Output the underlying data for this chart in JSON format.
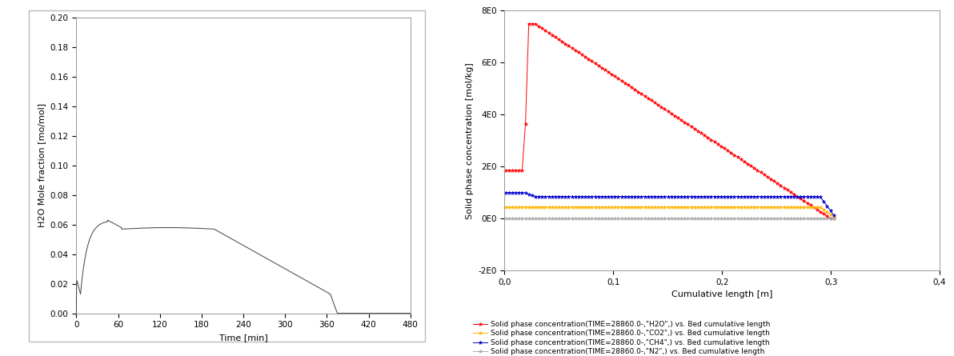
{
  "left_plot": {
    "xlabel": "Time [min]",
    "ylabel": "H2O Mole fraction [mo/mol]",
    "xlim": [
      0,
      480
    ],
    "ylim": [
      0,
      0.2
    ],
    "xticks": [
      0,
      60,
      120,
      180,
      240,
      300,
      360,
      420,
      480
    ],
    "yticks": [
      0,
      0.02,
      0.04,
      0.06,
      0.08,
      0.1,
      0.12,
      0.14,
      0.16,
      0.18,
      0.2
    ],
    "line_color": "#404040"
  },
  "right_plot": {
    "xlabel": "Cumulative length [m]",
    "ylabel": "Solid phase concentration [mol/kg]",
    "xlim": [
      0,
      0.4
    ],
    "ylim": [
      -2,
      8
    ],
    "xticks": [
      0.0,
      0.1,
      0.2,
      0.3,
      0.4
    ],
    "xtick_labels": [
      "0,0",
      "0,1",
      "0,2",
      "0,3",
      "0,4"
    ],
    "ytick_labels": [
      "-2E0",
      "0E0",
      "2E0",
      "4E0",
      "6E0",
      "8E0"
    ],
    "ytick_values": [
      -2,
      0,
      2,
      4,
      6,
      8
    ],
    "legend_entries": [
      {
        "label": "Solid phase concentration(TIME=28860.0-,\"H2O\",) vs. Bed cumulative length",
        "color": "#FF0000",
        "marker": "*"
      },
      {
        "label": "Solid phase concentration(TIME=28860.0-,\"CO2\",) vs. Bed cumulative length",
        "color": "#FFB300",
        "marker": "*"
      },
      {
        "label": "Solid phase concentration(TIME=28860.0-,\"CH4\",) vs. Bed cumulative length",
        "color": "#0000CC",
        "marker": "*"
      },
      {
        "label": "Solid phase concentration(TIME=28860.0-,\"N2\",) vs. Bed cumulative length",
        "color": "#AAAAAA",
        "marker": "*"
      }
    ]
  },
  "background_color": "#FFFFFF",
  "panel_border_color": "#BBBBBB"
}
